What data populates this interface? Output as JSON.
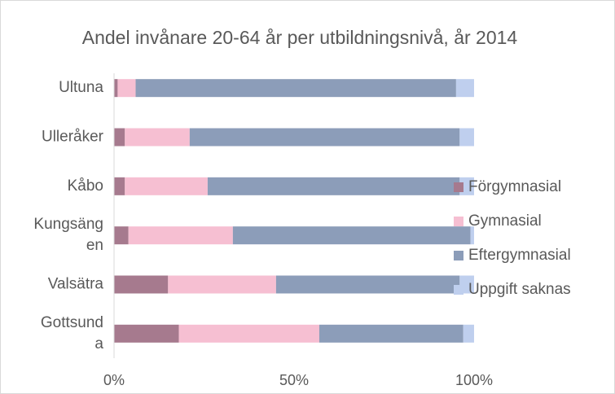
{
  "chart_data": {
    "type": "stacked_barh",
    "title": "Andel invånare 20-64 år per utbildningsnivå, år 2014",
    "categories": [
      "Ultuna",
      "Ulleråker",
      "Kåbo",
      "Kungsängen",
      "Valsätra",
      "Gottsunda"
    ],
    "series": [
      {
        "name": "Förgymnasial",
        "color": "#a67a8e",
        "values": [
          1,
          3,
          3,
          4,
          15,
          18
        ]
      },
      {
        "name": "Gymnasial",
        "color": "#f6bfd2",
        "values": [
          5,
          18,
          23,
          29,
          30,
          39
        ]
      },
      {
        "name": "Eftergymnasial",
        "color": "#8c9db9",
        "values": [
          89,
          75,
          70,
          66,
          51,
          40
        ]
      },
      {
        "name": "Uppgift saknas",
        "color": "#bfcfee",
        "values": [
          5,
          4,
          4,
          1,
          4,
          3
        ]
      }
    ],
    "xlim": [
      0,
      100
    ],
    "xticks": [
      {
        "value": 0,
        "label": "0%"
      },
      {
        "value": 50,
        "label": "50%"
      },
      {
        "value": 100,
        "label": "100%"
      }
    ],
    "grid": false,
    "legend": "right"
  }
}
